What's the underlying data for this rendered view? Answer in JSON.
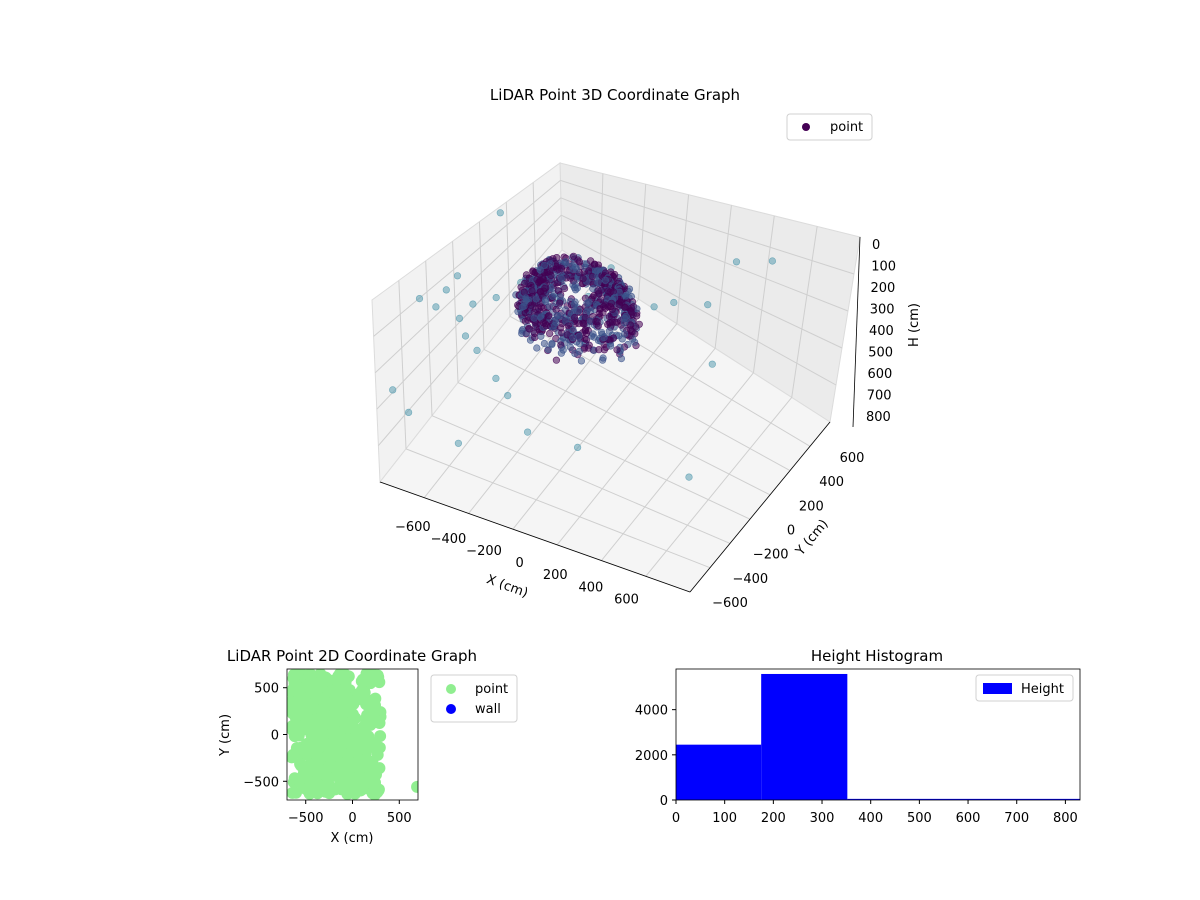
{
  "chart_data": [
    {
      "type": "scatter",
      "subtype": "3d",
      "title": "LiDAR Point 3D Coordinate Graph",
      "xlabel": "X (cm)",
      "ylabel": "Y (cm)",
      "zlabel": "H (cm)",
      "xlim": [
        -700,
        700
      ],
      "ylim": [
        -700,
        700
      ],
      "zlim": [
        0,
        850
      ],
      "z_inverted": true,
      "x_ticks": [
        "−600",
        "−400",
        "−200",
        "0",
        "200",
        "400",
        "600"
      ],
      "y_ticks": [
        "−600",
        "−400",
        "−200",
        "0",
        "200",
        "400",
        "600"
      ],
      "z_ticks": [
        "0",
        "100",
        "200",
        "300",
        "400",
        "500",
        "600",
        "700",
        "800"
      ],
      "grid": true,
      "legend": {
        "position": "top-right",
        "entries": [
          "point"
        ]
      },
      "colormap": "viridis (color by distance)",
      "colors": {
        "near": "#440154",
        "mid": "#3b528b",
        "far": "#5a9db0"
      },
      "series": [
        {
          "name": "point",
          "note": "dense dome of points around the origin plus sparse outliers",
          "clusters": [
            {
              "shape": "dome",
              "center": [
                -30,
                -30
              ],
              "radius": 250,
              "h_range": [
                120,
                420
              ]
            }
          ],
          "outliers": [
            [
              -600,
              -100,
              400
            ],
            [
              -650,
              -250,
              380
            ],
            [
              -620,
              50,
              420
            ],
            [
              -550,
              -300,
              360
            ],
            [
              -500,
              -200,
              430
            ],
            [
              -450,
              50,
              450
            ],
            [
              -400,
              -350,
              400
            ],
            [
              -380,
              150,
              420
            ],
            [
              -300,
              -450,
              380
            ],
            [
              -250,
              200,
              460
            ],
            [
              -200,
              -500,
              430
            ],
            [
              -150,
              300,
              470
            ],
            [
              -100,
              -600,
              420
            ],
            [
              0,
              -650,
              500
            ],
            [
              100,
              400,
              480
            ],
            [
              200,
              -600,
              520
            ],
            [
              300,
              500,
              460
            ],
            [
              450,
              200,
              500
            ],
            [
              550,
              650,
              300
            ],
            [
              600,
              -400,
              600
            ],
            [
              -680,
              600,
              450
            ],
            [
              -640,
              -600,
              550
            ],
            [
              -700,
              300,
              650
            ],
            [
              -660,
              -450,
              700
            ],
            [
              -350,
              -620,
              650
            ],
            [
              -200,
              620,
              520
            ],
            [
              250,
              300,
              380
            ],
            [
              380,
              650,
              350
            ]
          ]
        }
      ]
    },
    {
      "type": "scatter",
      "title": "LiDAR Point 2D Coordinate Graph",
      "xlabel": "X (cm)",
      "ylabel": "Y (cm)",
      "xlim": [
        -700,
        700
      ],
      "ylim": [
        -700,
        700
      ],
      "x_ticks": [
        "−500",
        "0",
        "500"
      ],
      "y_ticks": [
        "−500",
        "0",
        "500"
      ],
      "legend": {
        "position": "outside-right",
        "entries": [
          "point",
          "wall"
        ]
      },
      "colors": {
        "point": "#90ee90",
        "wall": "#0000ff"
      },
      "series": [
        {
          "name": "point",
          "note": "dense green blob covering roughly x −650..300, y −650..650",
          "extent": {
            "x": [
              -650,
              300
            ],
            "y": [
              -650,
              650
            ]
          }
        },
        {
          "name": "wall",
          "points": []
        }
      ]
    },
    {
      "type": "bar",
      "subtype": "histogram",
      "title": "Height Histogram",
      "xlim": [
        0,
        830
      ],
      "ylim": [
        0,
        5800
      ],
      "x_ticks": [
        "0",
        "100",
        "200",
        "300",
        "400",
        "500",
        "600",
        "700",
        "800"
      ],
      "y_ticks": [
        "0",
        "2000",
        "4000"
      ],
      "legend": {
        "position": "top-right",
        "entries": [
          "Height"
        ]
      },
      "colors": {
        "bar": "#0000ff"
      },
      "series": [
        {
          "name": "Height",
          "bins": [
            {
              "x0": 0,
              "x1": 175,
              "count": 2450
            },
            {
              "x0": 175,
              "x1": 352,
              "count": 5580
            },
            {
              "x0": 352,
              "x1": 830,
              "count": 50
            }
          ]
        }
      ]
    }
  ]
}
